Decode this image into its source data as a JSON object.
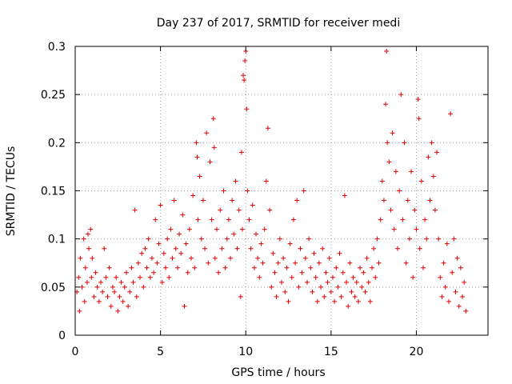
{
  "chart_data": {
    "type": "scatter",
    "title": "Day 237 of 2017, SRMTID for receiver medi",
    "xlabel": "GPS time / hours",
    "ylabel": "SRMTID / TECUs",
    "xlim": [
      0,
      24.2
    ],
    "ylim": [
      0,
      0.3
    ],
    "xticks": [
      0,
      5,
      10,
      15,
      20
    ],
    "xtick_labels": [
      "0",
      "5",
      "10",
      "15",
      "20"
    ],
    "yticks": [
      0,
      0.05,
      0.1,
      0.15,
      0.2,
      0.25,
      0.3
    ],
    "ytick_labels": [
      "0",
      "0.05",
      "0.1",
      "0.15",
      "0.2",
      "0.25",
      "0.3"
    ],
    "grid": true,
    "marker": "+",
    "color": "#e00000",
    "series": [
      {
        "name": "SRMTID",
        "points": [
          [
            0.1,
            0.045
          ],
          [
            0.2,
            0.06
          ],
          [
            0.25,
            0.025
          ],
          [
            0.3,
            0.08
          ],
          [
            0.4,
            0.05
          ],
          [
            0.5,
            0.1
          ],
          [
            0.55,
            0.035
          ],
          [
            0.6,
            0.07
          ],
          [
            0.7,
            0.055
          ],
          [
            0.75,
            0.105
          ],
          [
            0.8,
            0.09
          ],
          [
            0.9,
            0.11
          ],
          [
            0.95,
            0.06
          ],
          [
            1.0,
            0.08
          ],
          [
            1.1,
            0.04
          ],
          [
            1.2,
            0.065
          ],
          [
            1.3,
            0.05
          ],
          [
            1.4,
            0.035
          ],
          [
            1.5,
            0.055
          ],
          [
            1.6,
            0.045
          ],
          [
            1.7,
            0.09
          ],
          [
            1.8,
            0.06
          ],
          [
            1.9,
            0.04
          ],
          [
            2.0,
            0.07
          ],
          [
            2.1,
            0.03
          ],
          [
            2.2,
            0.05
          ],
          [
            2.3,
            0.045
          ],
          [
            2.4,
            0.06
          ],
          [
            2.5,
            0.025
          ],
          [
            2.6,
            0.04
          ],
          [
            2.7,
            0.055
          ],
          [
            2.8,
            0.035
          ],
          [
            2.9,
            0.05
          ],
          [
            3.0,
            0.065
          ],
          [
            3.1,
            0.03
          ],
          [
            3.2,
            0.045
          ],
          [
            3.3,
            0.07
          ],
          [
            3.4,
            0.055
          ],
          [
            3.5,
            0.13
          ],
          [
            3.6,
            0.04
          ],
          [
            3.7,
            0.075
          ],
          [
            3.8,
            0.06
          ],
          [
            3.9,
            0.085
          ],
          [
            4.0,
            0.05
          ],
          [
            4.1,
            0.09
          ],
          [
            4.2,
            0.07
          ],
          [
            4.3,
            0.1
          ],
          [
            4.4,
            0.06
          ],
          [
            4.5,
            0.08
          ],
          [
            4.6,
            0.065
          ],
          [
            4.7,
            0.12
          ],
          [
            4.8,
            0.075
          ],
          [
            4.9,
            0.095
          ],
          [
            5.0,
            0.135
          ],
          [
            5.1,
            0.055
          ],
          [
            5.2,
            0.085
          ],
          [
            5.3,
            0.07
          ],
          [
            5.4,
            0.1
          ],
          [
            5.5,
            0.06
          ],
          [
            5.6,
            0.11
          ],
          [
            5.7,
            0.08
          ],
          [
            5.8,
            0.14
          ],
          [
            5.9,
            0.09
          ],
          [
            6.0,
            0.07
          ],
          [
            6.1,
            0.105
          ],
          [
            6.2,
            0.085
          ],
          [
            6.3,
            0.125
          ],
          [
            6.4,
            0.03
          ],
          [
            6.5,
            0.095
          ],
          [
            6.6,
            0.065
          ],
          [
            6.7,
            0.11
          ],
          [
            6.8,
            0.08
          ],
          [
            6.9,
            0.145
          ],
          [
            7.0,
            0.07
          ],
          [
            7.1,
            0.2
          ],
          [
            7.15,
            0.185
          ],
          [
            7.2,
            0.12
          ],
          [
            7.3,
            0.165
          ],
          [
            7.4,
            0.1
          ],
          [
            7.5,
            0.14
          ],
          [
            7.6,
            0.09
          ],
          [
            7.7,
            0.21
          ],
          [
            7.8,
            0.075
          ],
          [
            7.9,
            0.18
          ],
          [
            8.0,
            0.12
          ],
          [
            8.1,
            0.225
          ],
          [
            8.15,
            0.195
          ],
          [
            8.2,
            0.08
          ],
          [
            8.3,
            0.11
          ],
          [
            8.4,
            0.065
          ],
          [
            8.5,
            0.13
          ],
          [
            8.6,
            0.09
          ],
          [
            8.7,
            0.15
          ],
          [
            8.8,
            0.07
          ],
          [
            8.9,
            0.1
          ],
          [
            9.0,
            0.12
          ],
          [
            9.1,
            0.08
          ],
          [
            9.2,
            0.14
          ],
          [
            9.3,
            0.105
          ],
          [
            9.4,
            0.16
          ],
          [
            9.5,
            0.09
          ],
          [
            9.6,
            0.13
          ],
          [
            9.7,
            0.04
          ],
          [
            9.75,
            0.19
          ],
          [
            9.8,
            0.11
          ],
          [
            9.85,
            0.27
          ],
          [
            9.9,
            0.265
          ],
          [
            9.95,
            0.285
          ],
          [
            10.0,
            0.295
          ],
          [
            10.05,
            0.235
          ],
          [
            10.1,
            0.15
          ],
          [
            10.2,
            0.12
          ],
          [
            10.3,
            0.09
          ],
          [
            10.4,
            0.135
          ],
          [
            10.5,
            0.07
          ],
          [
            10.6,
            0.105
          ],
          [
            10.7,
            0.08
          ],
          [
            10.8,
            0.06
          ],
          [
            10.9,
            0.095
          ],
          [
            11.0,
            0.075
          ],
          [
            11.1,
            0.11
          ],
          [
            11.2,
            0.16
          ],
          [
            11.3,
            0.215
          ],
          [
            11.4,
            0.13
          ],
          [
            11.5,
            0.05
          ],
          [
            11.6,
            0.085
          ],
          [
            11.7,
            0.065
          ],
          [
            11.8,
            0.04
          ],
          [
            11.9,
            0.075
          ],
          [
            12.0,
            0.1
          ],
          [
            12.1,
            0.055
          ],
          [
            12.2,
            0.08
          ],
          [
            12.3,
            0.045
          ],
          [
            12.4,
            0.07
          ],
          [
            12.5,
            0.035
          ],
          [
            12.6,
            0.095
          ],
          [
            12.7,
            0.06
          ],
          [
            12.8,
            0.12
          ],
          [
            12.9,
            0.075
          ],
          [
            13.0,
            0.14
          ],
          [
            13.1,
            0.05
          ],
          [
            13.2,
            0.09
          ],
          [
            13.3,
            0.065
          ],
          [
            13.4,
            0.15
          ],
          [
            13.5,
            0.08
          ],
          [
            13.6,
            0.055
          ],
          [
            13.7,
            0.1
          ],
          [
            13.8,
            0.07
          ],
          [
            13.9,
            0.045
          ],
          [
            14.0,
            0.085
          ],
          [
            14.1,
            0.06
          ],
          [
            14.2,
            0.035
          ],
          [
            14.3,
            0.075
          ],
          [
            14.4,
            0.05
          ],
          [
            14.5,
            0.09
          ],
          [
            14.6,
            0.04
          ],
          [
            14.7,
            0.065
          ],
          [
            14.8,
            0.055
          ],
          [
            14.9,
            0.08
          ],
          [
            15.0,
            0.045
          ],
          [
            15.1,
            0.06
          ],
          [
            15.2,
            0.035
          ],
          [
            15.3,
            0.07
          ],
          [
            15.4,
            0.05
          ],
          [
            15.5,
            0.085
          ],
          [
            15.6,
            0.04
          ],
          [
            15.7,
            0.065
          ],
          [
            15.8,
            0.145
          ],
          [
            15.9,
            0.055
          ],
          [
            16.0,
            0.03
          ],
          [
            16.1,
            0.075
          ],
          [
            16.2,
            0.045
          ],
          [
            16.3,
            0.06
          ],
          [
            16.4,
            0.04
          ],
          [
            16.5,
            0.055
          ],
          [
            16.6,
            0.035
          ],
          [
            16.7,
            0.07
          ],
          [
            16.8,
            0.05
          ],
          [
            16.9,
            0.065
          ],
          [
            17.0,
            0.045
          ],
          [
            17.1,
            0.08
          ],
          [
            17.2,
            0.055
          ],
          [
            17.3,
            0.035
          ],
          [
            17.4,
            0.07
          ],
          [
            17.5,
            0.09
          ],
          [
            17.6,
            0.06
          ],
          [
            17.7,
            0.1
          ],
          [
            17.8,
            0.075
          ],
          [
            17.9,
            0.12
          ],
          [
            18.0,
            0.16
          ],
          [
            18.1,
            0.14
          ],
          [
            18.2,
            0.24
          ],
          [
            18.25,
            0.295
          ],
          [
            18.3,
            0.2
          ],
          [
            18.4,
            0.18
          ],
          [
            18.5,
            0.13
          ],
          [
            18.6,
            0.21
          ],
          [
            18.7,
            0.11
          ],
          [
            18.8,
            0.17
          ],
          [
            18.9,
            0.09
          ],
          [
            19.0,
            0.15
          ],
          [
            19.1,
            0.25
          ],
          [
            19.2,
            0.12
          ],
          [
            19.3,
            0.2
          ],
          [
            19.4,
            0.075
          ],
          [
            19.5,
            0.14
          ],
          [
            19.6,
            0.1
          ],
          [
            19.7,
            0.17
          ],
          [
            19.8,
            0.06
          ],
          [
            19.9,
            0.13
          ],
          [
            20.0,
            0.11
          ],
          [
            20.1,
            0.245
          ],
          [
            20.15,
            0.225
          ],
          [
            20.2,
            0.09
          ],
          [
            20.3,
            0.16
          ],
          [
            20.4,
            0.07
          ],
          [
            20.5,
            0.12
          ],
          [
            20.6,
            0.1
          ],
          [
            20.7,
            0.185
          ],
          [
            20.8,
            0.14
          ],
          [
            20.9,
            0.2
          ],
          [
            21.0,
            0.165
          ],
          [
            21.1,
            0.13
          ],
          [
            21.2,
            0.19
          ],
          [
            21.3,
            0.1
          ],
          [
            21.4,
            0.06
          ],
          [
            21.5,
            0.04
          ],
          [
            21.6,
            0.075
          ],
          [
            21.7,
            0.05
          ],
          [
            21.8,
            0.095
          ],
          [
            21.9,
            0.035
          ],
          [
            22.0,
            0.23
          ],
          [
            22.1,
            0.065
          ],
          [
            22.2,
            0.1
          ],
          [
            22.3,
            0.045
          ],
          [
            22.4,
            0.08
          ],
          [
            22.5,
            0.03
          ],
          [
            22.6,
            0.07
          ],
          [
            22.7,
            0.04
          ],
          [
            22.8,
            0.055
          ],
          [
            22.9,
            0.025
          ]
        ]
      }
    ]
  }
}
